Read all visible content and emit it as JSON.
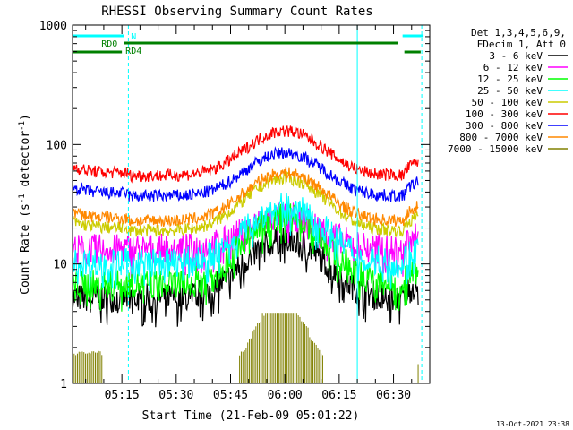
{
  "chart_data": {
    "type": "line",
    "title": "RHESSI Observing Summary Count Rates",
    "xlabel": "Start Time (21-Feb-09 05:01:22)",
    "ylabel_main": "Count Rate (s",
    "ylabel_sup1": "-1",
    "ylabel_mid": " detector",
    "ylabel_sup2": "-1",
    "ylabel_end": ")",
    "yscale": "log",
    "ylim": [
      1,
      1000
    ],
    "y_ticks": [
      {
        "value": 1,
        "label": "1"
      },
      {
        "value": 10,
        "label": "10"
      },
      {
        "value": 100,
        "label": "100"
      },
      {
        "value": 1000,
        "label": "1000"
      }
    ],
    "xlim_minutes": [
      301.37,
      400
    ],
    "x_ticks": [
      {
        "minute": 315,
        "label": "05:15"
      },
      {
        "minute": 330,
        "label": "05:30"
      },
      {
        "minute": 345,
        "label": "05:45"
      },
      {
        "minute": 360,
        "label": "06:00"
      },
      {
        "minute": 375,
        "label": "06:15"
      },
      {
        "minute": 390,
        "label": "06:30"
      }
    ],
    "legend_header": [
      "Det 1,3,4,5,6,9,",
      "FDecim 1, Att 0"
    ],
    "legend_position": "right",
    "series": [
      {
        "name": "3 - 6 keV",
        "color": "#000000",
        "level": 5.2,
        "peak": 16,
        "kind": "low"
      },
      {
        "name": "6 - 12 keV",
        "color": "#ff00ff",
        "level": 13.5,
        "peak": 25,
        "kind": "low"
      },
      {
        "name": "12 - 25 keV",
        "color": "#00ff00",
        "level": 6.8,
        "peak": 25,
        "kind": "low"
      },
      {
        "name": "25 - 50 keV",
        "color": "#00ffff",
        "level": 10.3,
        "peak": 30,
        "kind": "low"
      },
      {
        "name": "50 - 100 keV",
        "color": "#cccc00",
        "level": 19.0,
        "peak": 52,
        "kind": "mid"
      },
      {
        "name": "100 - 300 keV",
        "color": "#ff0000",
        "level": 55.0,
        "peak": 130,
        "kind": "high"
      },
      {
        "name": "300 - 800 keV",
        "color": "#0000ff",
        "level": 37.0,
        "peak": 85,
        "kind": "high"
      },
      {
        "name": "800 - 7000 keV",
        "color": "#ff8800",
        "level": 23.0,
        "peak": 58,
        "kind": "mid"
      },
      {
        "name": "7000 - 15000 keV",
        "color": "#808000",
        "level": 1.0,
        "peak": 4,
        "kind": "atten"
      }
    ],
    "gap_minutes": [
      316.8,
      393.0
    ],
    "time_range": [
      301.37,
      396.8
    ],
    "annotations": [
      {
        "label": "N",
        "color": "#00ffff",
        "segments": [
          [
            301.37,
            315.5
          ],
          [
            392.5,
            398.3
          ]
        ]
      },
      {
        "label": "RD0",
        "color": "#008000",
        "segments": [
          [
            315.5,
            391.2
          ]
        ]
      },
      {
        "label": "RD4",
        "color": "#008000",
        "segments": [
          [
            301.37,
            315.0
          ],
          [
            393.0,
            397.5
          ]
        ]
      }
    ],
    "vertical_lines": [
      {
        "minute": 301.37,
        "style": "solid",
        "color": "#00ffff"
      },
      {
        "minute": 316.8,
        "style": "dashed",
        "color": "#00ffff"
      },
      {
        "minute": 380.0,
        "style": "solid",
        "color": "#00ffff"
      },
      {
        "minute": 397.8,
        "style": "dashed",
        "color": "#00ffff"
      }
    ],
    "timestamp": "13-Oct-2021 23:38"
  }
}
